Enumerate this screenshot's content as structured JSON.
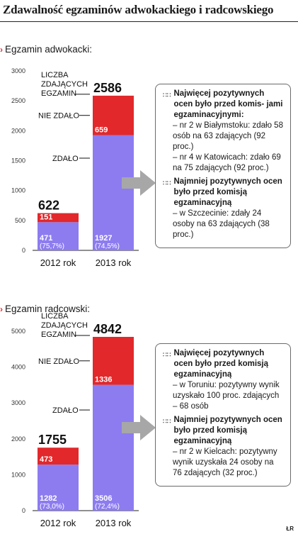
{
  "title": "Zdawalność egzaminów adwokackiego i radcowskiego",
  "credit": "ŁR",
  "colors": {
    "passed": "#8c7cf0",
    "failed": "#e2282b",
    "ink": "#111111",
    "box_border": "#6a6a6a",
    "arrow": "#a7a7a7"
  },
  "chart_data": [
    {
      "type": "bar",
      "stacked": true,
      "section_label": "Egzamin adwokacki:",
      "categories": [
        "2012 rok",
        "2013 rok"
      ],
      "ylim": [
        0,
        3000
      ],
      "yticks": [
        0,
        500,
        1000,
        1500,
        2000,
        2500,
        3000
      ],
      "grid": false,
      "series": [
        {
          "name": "ZDAŁO",
          "values": [
            471,
            1927
          ],
          "labels": [
            "471",
            "1927"
          ],
          "pct": [
            "(75,7%)",
            "(74,5%)"
          ]
        },
        {
          "name": "NIE ZDAŁO",
          "values": [
            151,
            659
          ],
          "labels": [
            "151",
            "659"
          ]
        }
      ],
      "totals": [
        "622",
        "2586"
      ],
      "annotations": {
        "total_label": [
          "LICZBA",
          "ZDAJĄCYCH",
          "EGZAMIN"
        ],
        "failed_label": "NIE ZDAŁO",
        "passed_label": "ZDAŁO"
      },
      "box": {
        "best_heading": "Najwięcej pozytywnych ocen było przed komis- jami egzaminacyjnymi:",
        "best_items": [
          "– nr 2 w Białymstoku: zdało 58 osób na 63 zdających (92 proc.)",
          "– nr 4 w Katowicach: zdało 69 na 75 zdających (92 proc.)"
        ],
        "worst_heading": "Najmniej pozytywnych ocen było przed komisją egzaminacyjną",
        "worst_items": [
          "– w Szczecinie: zdały 24 osoby na 63 zdających (38 proc.)"
        ]
      }
    },
    {
      "type": "bar",
      "stacked": true,
      "section_label": "Egzamin radcowski:",
      "categories": [
        "2012 rok",
        "2013 rok"
      ],
      "ylim": [
        0,
        5000
      ],
      "yticks": [
        0,
        1000,
        2000,
        3000,
        4000,
        5000
      ],
      "grid": false,
      "series": [
        {
          "name": "ZDAŁO",
          "values": [
            1282,
            3506
          ],
          "labels": [
            "1282",
            "3506"
          ],
          "pct": [
            "(73,0%)",
            "(72,4%)"
          ]
        },
        {
          "name": "NIE ZDAŁO",
          "values": [
            473,
            1336
          ],
          "labels": [
            "473",
            "1336"
          ]
        }
      ],
      "totals": [
        "1755",
        "4842"
      ],
      "annotations": {
        "total_label": [
          "LICZBA",
          "ZDAJĄCYCH",
          "EGZAMIN"
        ],
        "failed_label": "NIE ZDAŁO",
        "passed_label": "ZDAŁO"
      },
      "box": {
        "best_heading": "Najwięcej pozytywnych ocen było przed komisją egzaminacyjną",
        "best_items": [
          "– w Toruniu: pozytywny wynik uzyskało 100 proc. zdających – 68 osób"
        ],
        "worst_heading": "Najmniejej pozytywnych ocen było przed komisją egzaminacyjną",
        "worst_items": [
          "– nr 2 w Kielcach: pozytywny wynik uzyskała 24 osoby na 76 zdających (32 proc.)"
        ]
      }
    }
  ]
}
